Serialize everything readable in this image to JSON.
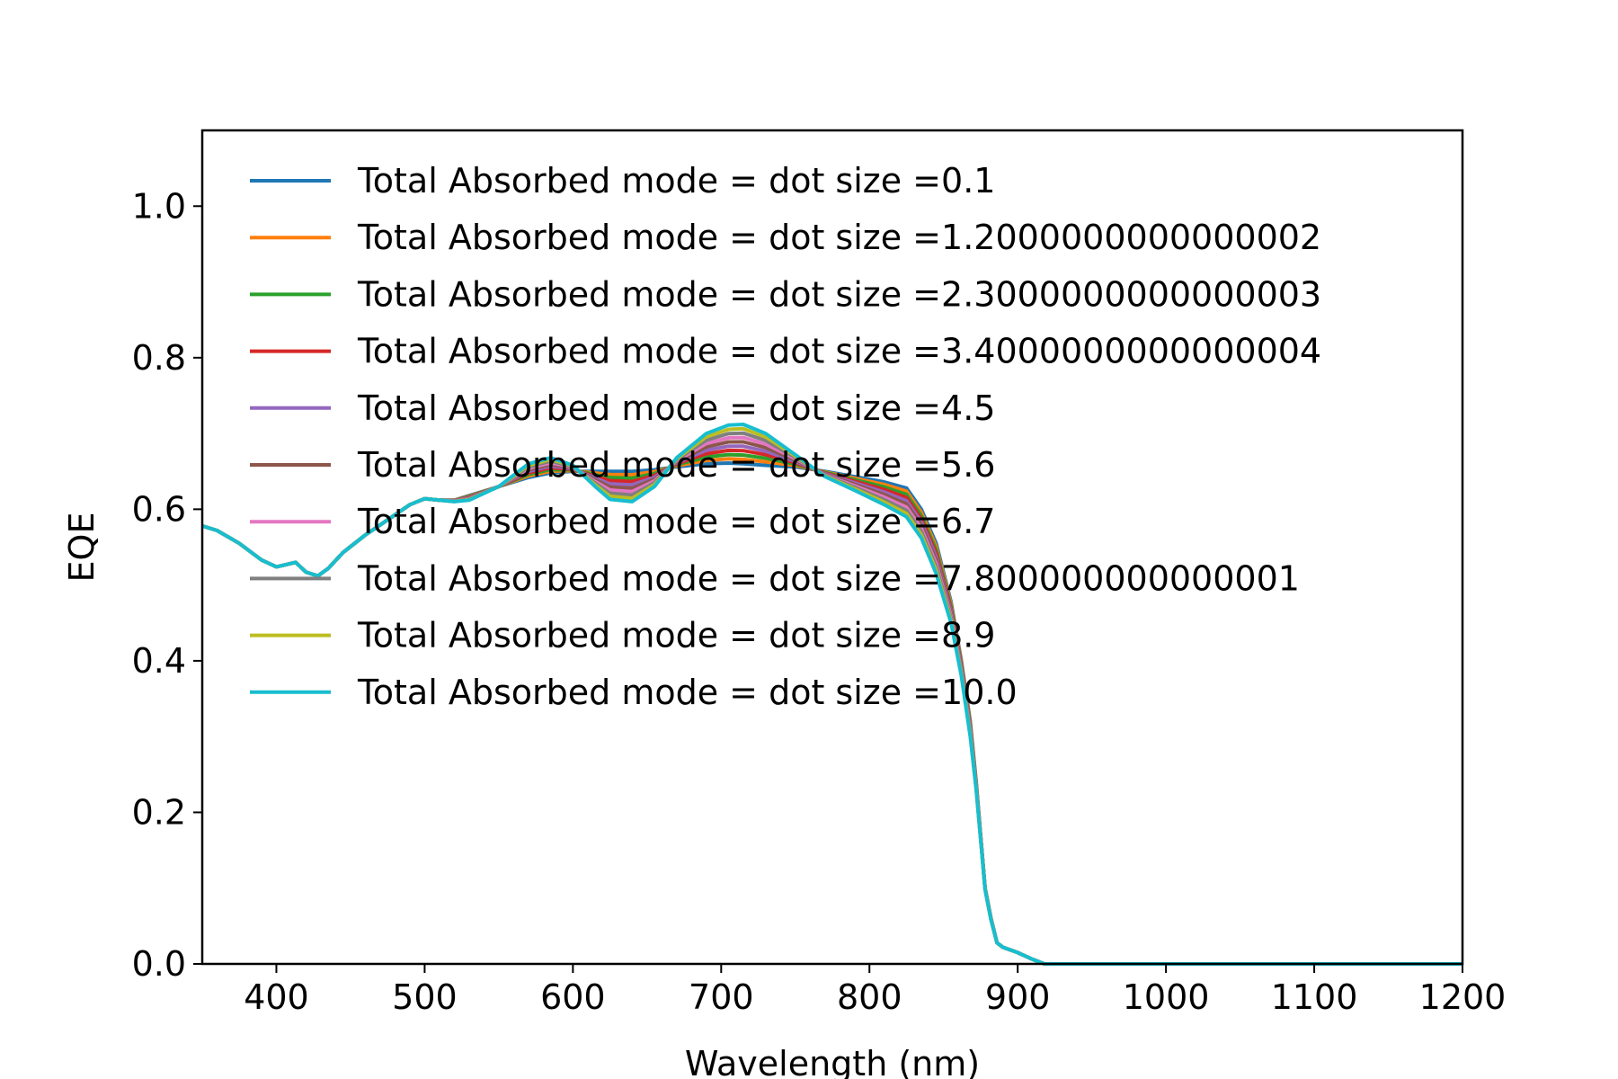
{
  "chart_data": {
    "type": "line",
    "title": "",
    "xlabel": "Wavelength (nm)",
    "ylabel": "EQE",
    "xlim": [
      350,
      1200
    ],
    "ylim": [
      0,
      1.1
    ],
    "xticks": [
      400,
      500,
      600,
      700,
      800,
      900,
      1000,
      1100,
      1200
    ],
    "yticks": [
      0.0,
      0.2,
      0.4,
      0.6,
      0.8,
      1.0
    ],
    "xtick_labels": [
      "400",
      "500",
      "600",
      "700",
      "800",
      "900",
      "1000",
      "1100",
      "1200"
    ],
    "ytick_labels": [
      "0.0",
      "0.2",
      "0.4",
      "0.6",
      "0.8",
      "1.0"
    ],
    "grid": false,
    "legend_position": "upper-left",
    "common_x": [
      350,
      360,
      375,
      390,
      400,
      413,
      420,
      428,
      435,
      445,
      460,
      475,
      490,
      500,
      510
    ],
    "common_y": [
      0.578,
      0.572,
      0.555,
      0.533,
      0.524,
      0.53,
      0.517,
      0.512,
      0.522,
      0.543,
      0.566,
      0.586,
      0.606,
      0.614,
      0.612
    ],
    "divergent_x": [
      520,
      530,
      550,
      570,
      585,
      600,
      615,
      625,
      640,
      655,
      670,
      690,
      705,
      715,
      730,
      750,
      770,
      790,
      810,
      825,
      835,
      845,
      855,
      862,
      868,
      872,
      875,
      878,
      882,
      886,
      890,
      900,
      910,
      918,
      930,
      950,
      1000,
      1100,
      1200
    ],
    "divergent_y_first": [
      0.612,
      0.618,
      0.63,
      0.642,
      0.648,
      0.65,
      0.65,
      0.65,
      0.65,
      0.652,
      0.656,
      0.66,
      0.661,
      0.66,
      0.658,
      0.656,
      0.65,
      0.643,
      0.636,
      0.628,
      0.6,
      0.555,
      0.478,
      0.4,
      0.32,
      0.24,
      0.17,
      0.1,
      0.06,
      0.028,
      0.022,
      0.015,
      0.006,
      0.0,
      0.0,
      0.0,
      0.0,
      0.0,
      0.0
    ],
    "divergent_y_last": [
      0.61,
      0.612,
      0.63,
      0.66,
      0.668,
      0.658,
      0.63,
      0.613,
      0.61,
      0.63,
      0.668,
      0.7,
      0.711,
      0.712,
      0.7,
      0.672,
      0.643,
      0.625,
      0.606,
      0.59,
      0.562,
      0.515,
      0.45,
      0.38,
      0.3,
      0.23,
      0.165,
      0.098,
      0.058,
      0.028,
      0.022,
      0.015,
      0.006,
      0.0,
      0.0,
      0.0,
      0.0,
      0.0,
      0.0
    ],
    "series": [
      {
        "name": "Total Absorbed mode = dot size =0.1",
        "color": "#1f77b4",
        "blend": 0.0
      },
      {
        "name": "Total Absorbed mode = dot size =1.2000000000000002",
        "color": "#ff7f0e",
        "blend": 0.111
      },
      {
        "name": "Total Absorbed mode = dot size =2.3000000000000003",
        "color": "#2ca02c",
        "blend": 0.222
      },
      {
        "name": "Total Absorbed mode = dot size =3.4000000000000004",
        "color": "#d62728",
        "blend": 0.333
      },
      {
        "name": "Total Absorbed mode = dot size =4.5",
        "color": "#9467bd",
        "blend": 0.444
      },
      {
        "name": "Total Absorbed mode = dot size =5.6",
        "color": "#8c564b",
        "blend": 0.556
      },
      {
        "name": "Total Absorbed mode = dot size =6.7",
        "color": "#e377c2",
        "blend": 0.667
      },
      {
        "name": "Total Absorbed mode = dot size =7.800000000000001",
        "color": "#7f7f7f",
        "blend": 0.778
      },
      {
        "name": "Total Absorbed mode = dot size =8.9",
        "color": "#bcbd22",
        "blend": 0.889
      },
      {
        "name": "Total Absorbed mode = dot size =10.0",
        "color": "#17becf",
        "blend": 1.0
      }
    ]
  }
}
